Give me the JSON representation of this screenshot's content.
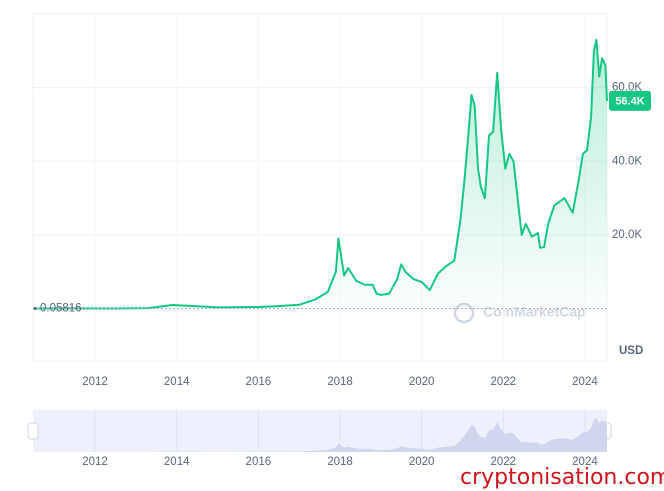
{
  "chart_data": {
    "type": "area",
    "color": "#16c784",
    "grid": true,
    "currency": "USD",
    "watermark": "CoinMarketCap",
    "site": "cryptonisation.com",
    "xlim": [
      2010.48,
      2024.54
    ],
    "xticks": [
      2012,
      2014,
      2016,
      2018,
      2020,
      2022,
      2024
    ],
    "ylim": [
      0,
      80000
    ],
    "yticks": [
      {
        "value": 20000,
        "label": "20.0K"
      },
      {
        "value": 40000,
        "label": "40.0K"
      },
      {
        "value": 60000,
        "label": "60.0K"
      }
    ],
    "x": [
      2010.55,
      2011.4,
      2012.5,
      2013.3,
      2013.9,
      2014.5,
      2015.0,
      2016.0,
      2016.5,
      2017.0,
      2017.4,
      2017.7,
      2017.9,
      2017.96,
      2018.1,
      2018.2,
      2018.4,
      2018.6,
      2018.8,
      2018.9,
      2019.0,
      2019.2,
      2019.4,
      2019.5,
      2019.6,
      2019.8,
      2020.0,
      2020.2,
      2020.4,
      2020.6,
      2020.8,
      2020.95,
      2021.05,
      2021.15,
      2021.22,
      2021.3,
      2021.38,
      2021.45,
      2021.55,
      2021.65,
      2021.75,
      2021.85,
      2021.95,
      2022.05,
      2022.15,
      2022.25,
      2022.35,
      2022.45,
      2022.55,
      2022.7,
      2022.85,
      2022.9,
      2023.0,
      2023.1,
      2023.25,
      2023.5,
      2023.7,
      2023.85,
      2023.95,
      2024.05,
      2024.15,
      2024.22,
      2024.28,
      2024.35,
      2024.42,
      2024.5,
      2024.54
    ],
    "y": [
      0.05816,
      30,
      10,
      100,
      950,
      600,
      300,
      400,
      650,
      1000,
      2500,
      4500,
      10000,
      19000,
      9000,
      11000,
      7500,
      6500,
      6400,
      4000,
      3700,
      4000,
      8000,
      12000,
      10000,
      8000,
      7200,
      5000,
      9500,
      11500,
      13000,
      24000,
      35000,
      48000,
      58000,
      55000,
      38000,
      33000,
      30000,
      47000,
      48000,
      64000,
      48000,
      38000,
      42000,
      40000,
      30000,
      20000,
      23000,
      19500,
      20500,
      16500,
      16700,
      23000,
      28000,
      30000,
      26000,
      35000,
      42000,
      43000,
      52000,
      70000,
      73000,
      63000,
      68000,
      66000,
      56400
    ],
    "last_label": "56.4K"
  }
}
